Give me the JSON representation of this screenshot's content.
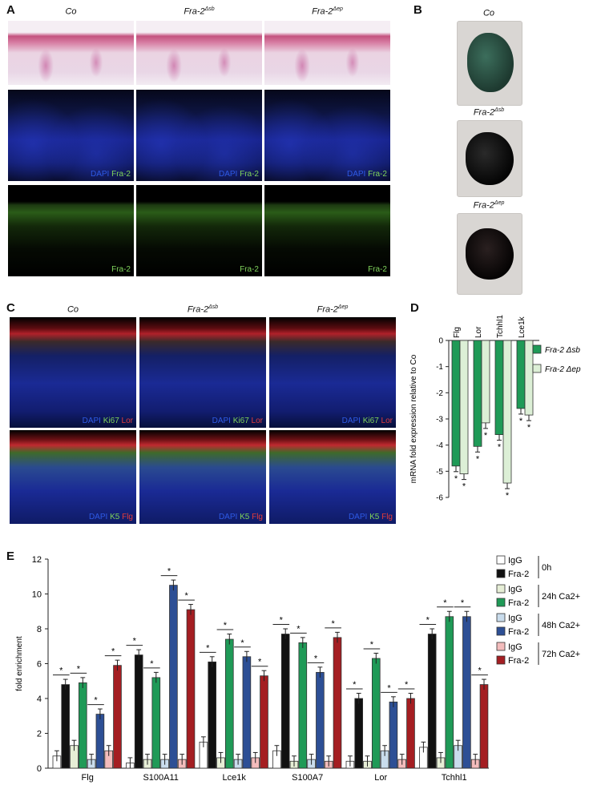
{
  "figure": {
    "panelA": {
      "label": "A",
      "columns": [
        {
          "base": "Co",
          "sup": ""
        },
        {
          "base": "Fra-2",
          "sup": "Δsb"
        },
        {
          "base": "Fra-2",
          "sup": "Δep"
        }
      ],
      "row2_labels": {
        "dapi": "DAPI",
        "marker": "Fra-2"
      },
      "row3_label": "Fra-2"
    },
    "panelB": {
      "label": "B",
      "embryos": [
        {
          "base": "Co",
          "sup": ""
        },
        {
          "base": "Fra-2",
          "sup": "Δsb"
        },
        {
          "base": "Fra-2",
          "sup": "Δep"
        }
      ]
    },
    "panelC": {
      "label": "C",
      "columns": [
        {
          "base": "Co",
          "sup": ""
        },
        {
          "base": "Fra-2",
          "sup": "Δsb"
        },
        {
          "base": "Fra-2",
          "sup": "Δep"
        }
      ],
      "row1": {
        "dapi": "DAPI",
        "green": "Ki67",
        "red": "Lor"
      },
      "row2": {
        "dapi": "DAPI",
        "green": "K5",
        "red": "Flg"
      }
    },
    "panelD": {
      "label": "D"
    },
    "panelE": {
      "label": "E"
    }
  },
  "chart_data": [
    {
      "type": "bar",
      "panel": "D",
      "categories": [
        "Flg",
        "Lor",
        "Tchhl1",
        "Lce1k"
      ],
      "series": [
        {
          "name": "Fra-2 Δsb",
          "color": "#1f9a57",
          "values": [
            -4.8,
            -4.05,
            -3.6,
            -2.6
          ]
        },
        {
          "name": "Fra-2 Δep",
          "color": "#dcefd6",
          "values": [
            -5.1,
            -3.15,
            -5.45,
            -2.85
          ]
        }
      ],
      "ylabel": "mRNA fold expression relative to Co",
      "ylim": [
        -6,
        0
      ],
      "yticks": [
        "0",
        "-1",
        "-2",
        "-3",
        "-4",
        "-5",
        "-6"
      ],
      "significance": "*",
      "legend": "right"
    },
    {
      "type": "bar",
      "panel": "E",
      "categories": [
        "Flg",
        "S100A11",
        "Lce1k",
        "S100A7",
        "Lor",
        "Tchhl1"
      ],
      "series": [
        {
          "name": "IgG",
          "group": "0h",
          "color": "#ffffff",
          "values": [
            0.7,
            0.3,
            1.5,
            1.0,
            0.4,
            1.2
          ]
        },
        {
          "name": "Fra-2",
          "group": "0h",
          "color": "#111111",
          "values": [
            4.8,
            6.5,
            6.1,
            7.7,
            4.0,
            7.7
          ]
        },
        {
          "name": "IgG",
          "group": "24h Ca2+",
          "color": "#e6eed6",
          "values": [
            1.3,
            0.5,
            0.6,
            0.4,
            0.4,
            0.6
          ]
        },
        {
          "name": "Fra-2",
          "group": "24h Ca2+",
          "color": "#1f9a57",
          "values": [
            4.9,
            5.2,
            7.4,
            7.2,
            6.3,
            8.7
          ]
        },
        {
          "name": "IgG",
          "group": "48h Ca2+",
          "color": "#c9dcec",
          "values": [
            0.5,
            0.5,
            0.5,
            0.5,
            1.0,
            1.3
          ]
        },
        {
          "name": "Fra-2",
          "group": "48h Ca2+",
          "color": "#2d4f95",
          "values": [
            3.1,
            10.5,
            6.4,
            5.5,
            3.8,
            8.7
          ]
        },
        {
          "name": "IgG",
          "group": "72h Ca2+",
          "color": "#f3bcbc",
          "values": [
            1.0,
            0.5,
            0.6,
            0.4,
            0.5,
            0.5
          ]
        },
        {
          "name": "Fra-2",
          "group": "72h Ca2+",
          "color": "#a41e22",
          "values": [
            5.9,
            9.1,
            5.3,
            7.5,
            4.0,
            4.8
          ]
        }
      ],
      "legend_groups": [
        "0h",
        "24h Ca2+",
        "48h Ca2+",
        "72h Ca2+"
      ],
      "ylabel": "fold enrichment",
      "ylim": [
        0,
        12
      ],
      "yticks": [
        "0",
        "2",
        "4",
        "6",
        "8",
        "10",
        "12"
      ],
      "significance": "*",
      "legend": "right"
    }
  ]
}
